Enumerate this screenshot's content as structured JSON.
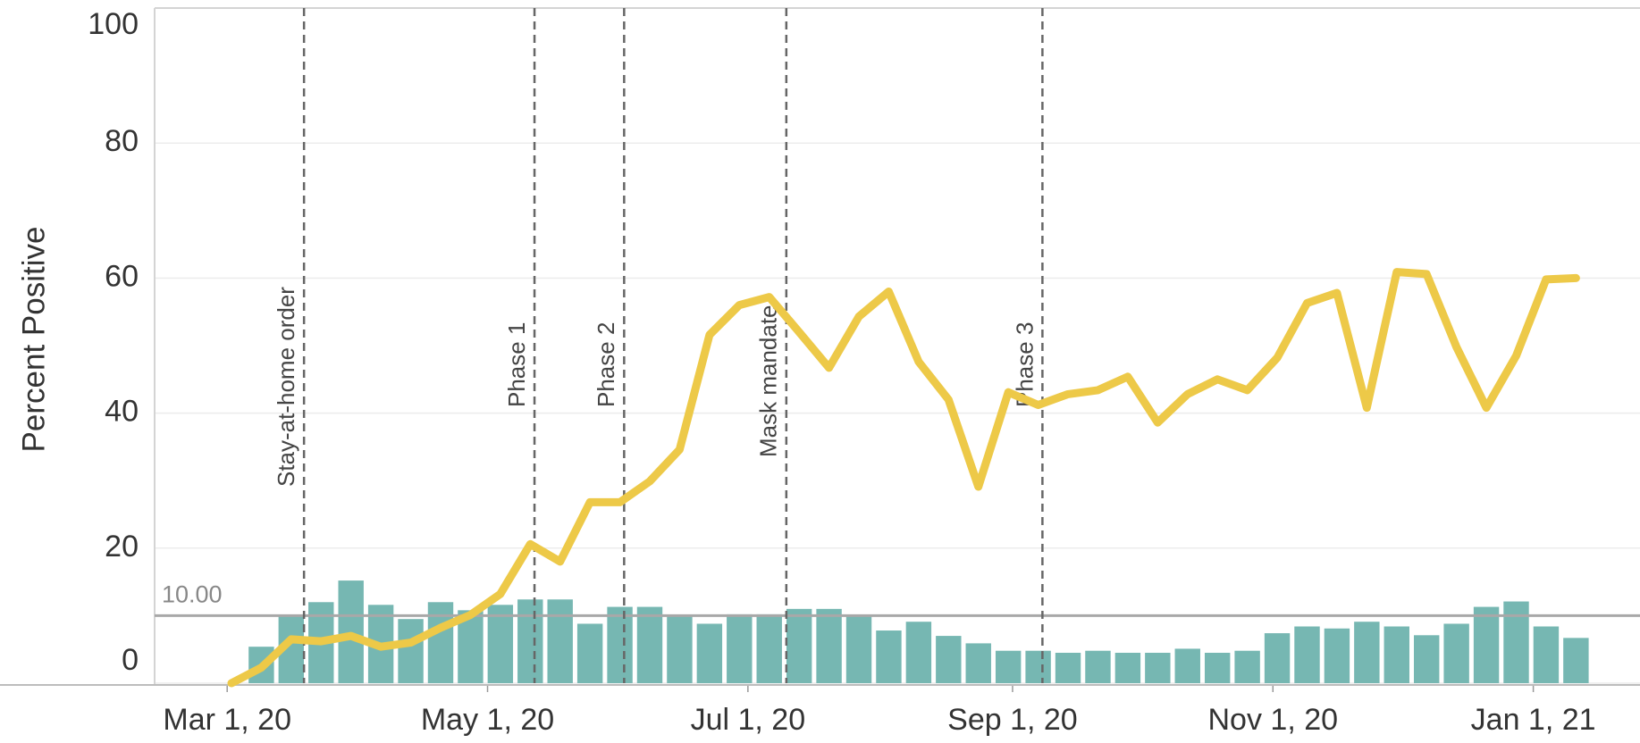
{
  "chart_data": {
    "type": "bar-line",
    "ylabel": "Percent Positive",
    "x": [
      "2020-03-02",
      "2020-03-09",
      "2020-03-16",
      "2020-03-23",
      "2020-03-30",
      "2020-04-06",
      "2020-04-13",
      "2020-04-20",
      "2020-04-27",
      "2020-05-04",
      "2020-05-11",
      "2020-05-18",
      "2020-05-25",
      "2020-06-01",
      "2020-06-08",
      "2020-06-15",
      "2020-06-22",
      "2020-06-29",
      "2020-07-06",
      "2020-07-13",
      "2020-07-20",
      "2020-07-27",
      "2020-08-03",
      "2020-08-10",
      "2020-08-17",
      "2020-08-24",
      "2020-08-31",
      "2020-09-07",
      "2020-09-14",
      "2020-09-21",
      "2020-09-28",
      "2020-10-05",
      "2020-10-12",
      "2020-10-19",
      "2020-10-26",
      "2020-11-02",
      "2020-11-09",
      "2020-11-16",
      "2020-11-23",
      "2020-11-30",
      "2020-12-07",
      "2020-12-14",
      "2020-12-21",
      "2020-12-28",
      "2021-01-04",
      "2021-01-11"
    ],
    "series": [
      {
        "type": "bar",
        "color": "#76b7b2",
        "values": [
          null,
          5.4,
          10,
          12,
          15.2,
          11.6,
          9.5,
          12,
          10.8,
          11.6,
          12.4,
          12.4,
          8.8,
          11.3,
          11.3,
          9.9,
          8.8,
          10.2,
          10.2,
          11,
          11,
          9.9,
          7.8,
          9.1,
          7,
          5.9,
          4.8,
          4.8,
          4.5,
          4.8,
          4.5,
          4.5,
          5.1,
          4.5,
          4.8,
          7.4,
          8.4,
          8.1,
          9.1,
          8.4,
          7.1,
          8.8,
          11.3,
          12.1,
          8.4,
          6.7
        ]
      },
      {
        "type": "line",
        "color": "#edc948",
        "values": [
          0,
          2.3,
          6.5,
          6.2,
          7,
          5.4,
          6,
          8.2,
          10.1,
          13.2,
          20.6,
          18,
          26.8,
          26.8,
          29.9,
          34.6,
          51.6,
          56,
          57.2,
          52,
          46.7,
          54.3,
          58,
          47.6,
          42,
          29.1,
          43.1,
          41.2,
          42.8,
          43.4,
          45.4,
          38.6,
          42.8,
          45,
          43.4,
          48.2,
          56.3,
          57.8,
          40.8,
          60.9,
          60.6,
          49.8,
          40.8,
          48.5,
          59.8,
          60
        ]
      }
    ],
    "xlim": [
      "2020-02-13",
      "2021-01-26"
    ],
    "xticks": [
      {
        "value": "2020-03-01",
        "label": "Mar 1, 20"
      },
      {
        "value": "2020-05-01",
        "label": "May 1, 20"
      },
      {
        "value": "2020-07-01",
        "label": "Jul 1, 20"
      },
      {
        "value": "2020-09-01",
        "label": "Sep 1, 20"
      },
      {
        "value": "2020-11-01",
        "label": "Nov 1, 20"
      },
      {
        "value": "2021-01-01",
        "label": "Jan 1, 21"
      }
    ],
    "ylim": [
      0,
      100
    ],
    "yticks": [
      0,
      20,
      40,
      60,
      80,
      100
    ],
    "grid": true,
    "reference_line": {
      "value": 10,
      "label": "10.00",
      "color": "#a8a8a8"
    },
    "annotations": [
      {
        "label": "Stay-at-home order",
        "x": "2020-03-19"
      },
      {
        "label": "Phase 1",
        "x": "2020-05-12"
      },
      {
        "label": "Phase 2",
        "x": "2020-06-02"
      },
      {
        "label": "Mask mandate",
        "x": "2020-07-10"
      },
      {
        "label": "Phase 3",
        "x": "2020-09-08"
      }
    ]
  }
}
